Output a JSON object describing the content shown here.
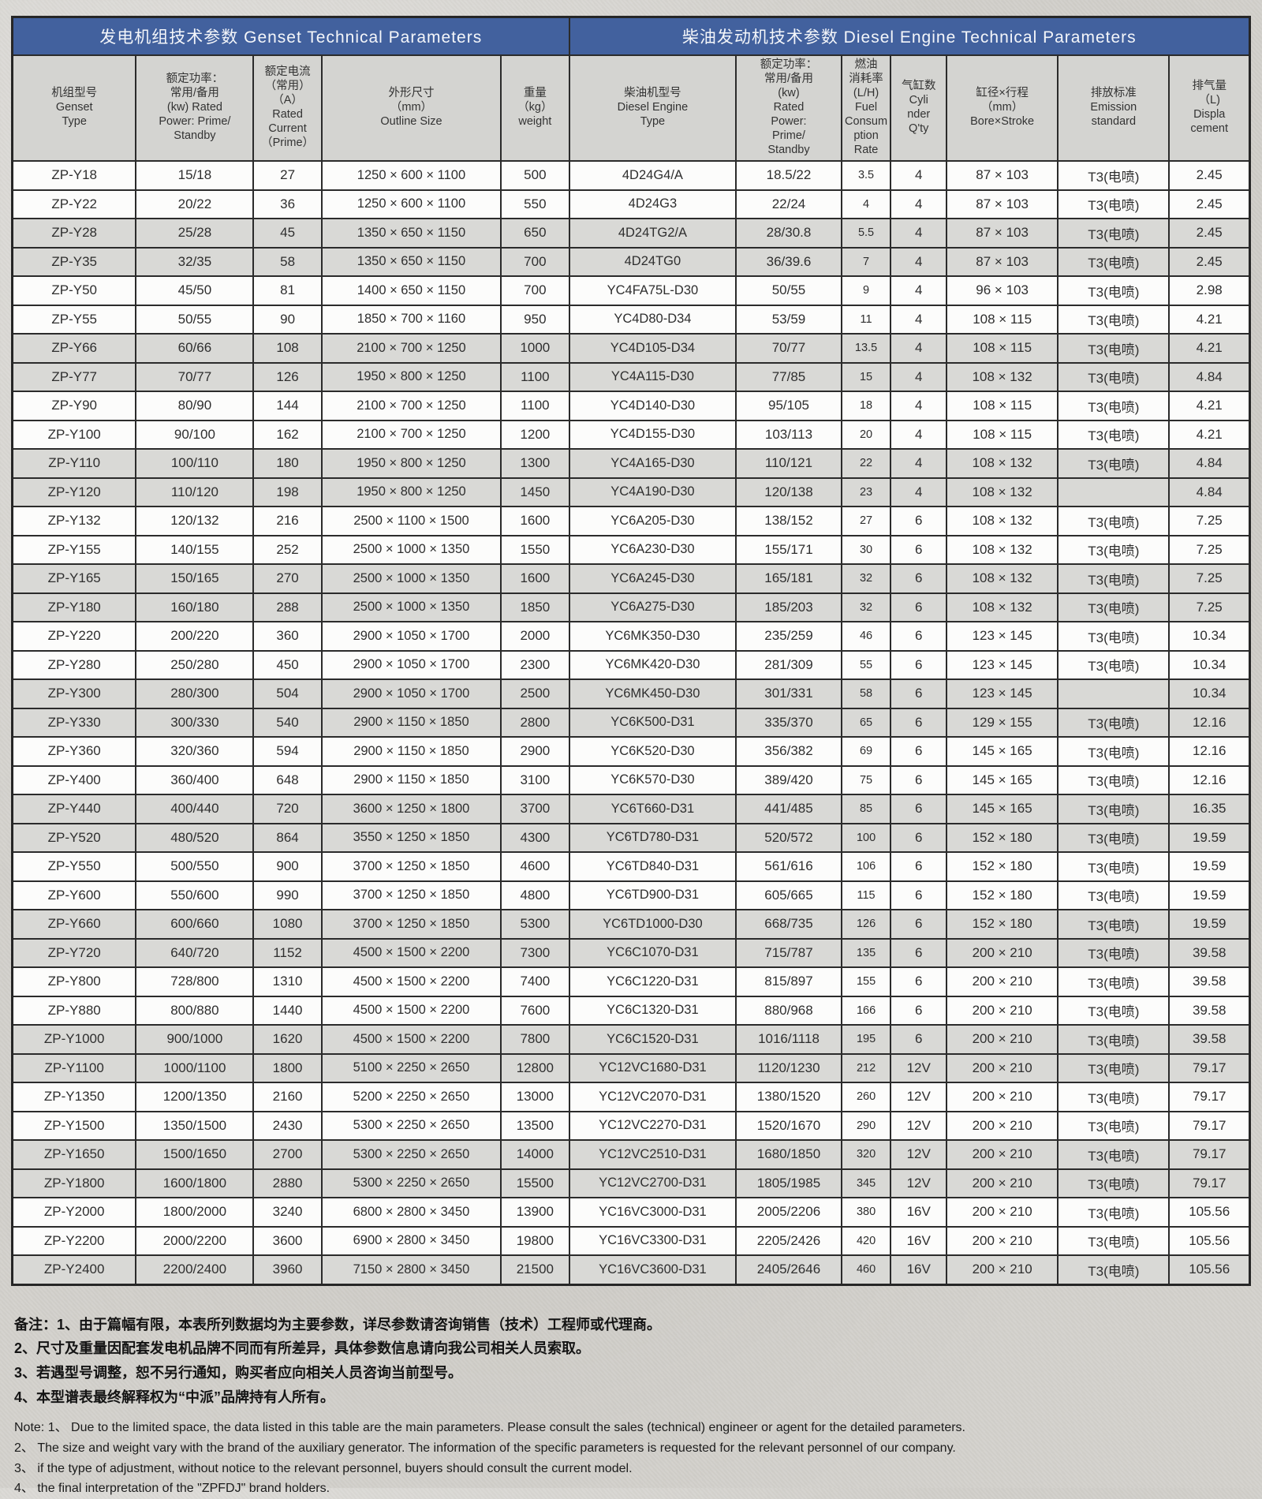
{
  "colors": {
    "header_blue": "#42619e",
    "stripe_gray": "#d9d9d6",
    "border": "#2b2b2b",
    "page_background": "#d3d1cc"
  },
  "table": {
    "group_headers": [
      "发电机组技术参数 Genset Technical Parameters",
      "柴油发动机技术参数 Diesel Engine Technical Parameters"
    ],
    "group_spans": [
      5,
      7
    ],
    "columns": [
      "机组型号\nGenset\nType",
      "额定功率：\n常用/备用\n(kw) Rated\nPower: Prime/\nStandby",
      "额定电流\n（常用）\n（A）\nRated\nCurrent\n（Prime）",
      "外形尺寸\n（mm）\nOutline Size",
      "重量\n（kg）\nweight",
      "柴油机型号\nDiesel Engine\nType",
      "额定功率：\n常用/备用\n(kw)\nRated\nPower:\nPrime/\nStandby",
      "燃油\n消耗率\n(L/H)\nFuel\nConsum\nption\nRate",
      "气缸数\nCyli\nnder\nQ'ty",
      "缸径×行程\n（mm）\nBore×Stroke",
      "排放标准\nEmission\nstandard",
      "排气量\n（L)\nDispla\ncement"
    ],
    "rows": [
      [
        "ZP-Y18",
        "15/18",
        "27",
        "1250 × 600 × 1100",
        "500",
        "4D24G4/A",
        "18.5/22",
        "3.5",
        "4",
        "87 × 103",
        "T3(电喷)",
        "2.45"
      ],
      [
        "ZP-Y22",
        "20/22",
        "36",
        "1250 × 600 × 1100",
        "550",
        "4D24G3",
        "22/24",
        "4",
        "4",
        "87 × 103",
        "T3(电喷)",
        "2.45"
      ],
      [
        "ZP-Y28",
        "25/28",
        "45",
        "1350 × 650 × 1150",
        "650",
        "4D24TG2/A",
        "28/30.8",
        "5.5",
        "4",
        "87 × 103",
        "T3(电喷)",
        "2.45"
      ],
      [
        "ZP-Y35",
        "32/35",
        "58",
        "1350 × 650 × 1150",
        "700",
        "4D24TG0",
        "36/39.6",
        "7",
        "4",
        "87 × 103",
        "T3(电喷)",
        "2.45"
      ],
      [
        "ZP-Y50",
        "45/50",
        "81",
        "1400 × 650 × 1150",
        "700",
        "YC4FA75L-D30",
        "50/55",
        "9",
        "4",
        "96 × 103",
        "T3(电喷)",
        "2.98"
      ],
      [
        "ZP-Y55",
        "50/55",
        "90",
        "1850 × 700 × 1160",
        "950",
        "YC4D80-D34",
        "53/59",
        "11",
        "4",
        "108 × 115",
        "T3(电喷)",
        "4.21"
      ],
      [
        "ZP-Y66",
        "60/66",
        "108",
        "2100 × 700 × 1250",
        "1000",
        "YC4D105-D34",
        "70/77",
        "13.5",
        "4",
        "108 × 115",
        "T3(电喷)",
        "4.21"
      ],
      [
        "ZP-Y77",
        "70/77",
        "126",
        "1950 × 800 × 1250",
        "1100",
        "YC4A115-D30",
        "77/85",
        "15",
        "4",
        "108 × 132",
        "T3(电喷)",
        "4.84"
      ],
      [
        "ZP-Y90",
        "80/90",
        "144",
        "2100 × 700 × 1250",
        "1100",
        "YC4D140-D30",
        "95/105",
        "18",
        "4",
        "108 × 115",
        "T3(电喷)",
        "4.21"
      ],
      [
        "ZP-Y100",
        "90/100",
        "162",
        "2100 × 700 × 1250",
        "1200",
        "YC4D155-D30",
        "103/113",
        "20",
        "4",
        "108 × 115",
        "T3(电喷)",
        "4.21"
      ],
      [
        "ZP-Y110",
        "100/110",
        "180",
        "1950 × 800 × 1250",
        "1300",
        "YC4A165-D30",
        "110/121",
        "22",
        "4",
        "108 × 132",
        "T3(电喷)",
        "4.84"
      ],
      [
        "ZP-Y120",
        "110/120",
        "198",
        "1950 × 800 × 1250",
        "1450",
        "YC4A190-D30",
        "120/138",
        "23",
        "4",
        "108 × 132",
        "",
        "4.84"
      ],
      [
        "ZP-Y132",
        "120/132",
        "216",
        "2500 × 1100 × 1500",
        "1600",
        "YC6A205-D30",
        "138/152",
        "27",
        "6",
        "108 × 132",
        "T3(电喷)",
        "7.25"
      ],
      [
        "ZP-Y155",
        "140/155",
        "252",
        "2500 × 1000 × 1350",
        "1550",
        "YC6A230-D30",
        "155/171",
        "30",
        "6",
        "108 × 132",
        "T3(电喷)",
        "7.25"
      ],
      [
        "ZP-Y165",
        "150/165",
        "270",
        "2500 × 1000 × 1350",
        "1600",
        "YC6A245-D30",
        "165/181",
        "32",
        "6",
        "108 × 132",
        "T3(电喷)",
        "7.25"
      ],
      [
        "ZP-Y180",
        "160/180",
        "288",
        "2500 × 1000 × 1350",
        "1850",
        "YC6A275-D30",
        "185/203",
        "32",
        "6",
        "108 × 132",
        "T3(电喷)",
        "7.25"
      ],
      [
        "ZP-Y220",
        "200/220",
        "360",
        "2900 × 1050 × 1700",
        "2000",
        "YC6MK350-D30",
        "235/259",
        "46",
        "6",
        "123 × 145",
        "T3(电喷)",
        "10.34"
      ],
      [
        "ZP-Y280",
        "250/280",
        "450",
        "2900 × 1050 × 1700",
        "2300",
        "YC6MK420-D30",
        "281/309",
        "55",
        "6",
        "123 × 145",
        "T3(电喷)",
        "10.34"
      ],
      [
        "ZP-Y300",
        "280/300",
        "504",
        "2900 × 1050 × 1700",
        "2500",
        "YC6MK450-D30",
        "301/331",
        "58",
        "6",
        "123 × 145",
        "",
        "10.34"
      ],
      [
        "ZP-Y330",
        "300/330",
        "540",
        "2900 × 1150 × 1850",
        "2800",
        "YC6K500-D31",
        "335/370",
        "65",
        "6",
        "129 × 155",
        "T3(电喷)",
        "12.16"
      ],
      [
        "ZP-Y360",
        "320/360",
        "594",
        "2900 × 1150 × 1850",
        "2900",
        "YC6K520-D30",
        "356/382",
        "69",
        "6",
        "145 × 165",
        "T3(电喷)",
        "12.16"
      ],
      [
        "ZP-Y400",
        "360/400",
        "648",
        "2900 × 1150 × 1850",
        "3100",
        "YC6K570-D30",
        "389/420",
        "75",
        "6",
        "145 × 165",
        "T3(电喷)",
        "12.16"
      ],
      [
        "ZP-Y440",
        "400/440",
        "720",
        "3600 × 1250 × 1800",
        "3700",
        "YC6T660-D31",
        "441/485",
        "85",
        "6",
        "145 × 165",
        "T3(电喷)",
        "16.35"
      ],
      [
        "ZP-Y520",
        "480/520",
        "864",
        "3550 × 1250 × 1850",
        "4300",
        "YC6TD780-D31",
        "520/572",
        "100",
        "6",
        "152 × 180",
        "T3(电喷)",
        "19.59"
      ],
      [
        "ZP-Y550",
        "500/550",
        "900",
        "3700 × 1250 × 1850",
        "4600",
        "YC6TD840-D31",
        "561/616",
        "106",
        "6",
        "152 × 180",
        "T3(电喷)",
        "19.59"
      ],
      [
        "ZP-Y600",
        "550/600",
        "990",
        "3700 × 1250 × 1850",
        "4800",
        "YC6TD900-D31",
        "605/665",
        "115",
        "6",
        "152 × 180",
        "T3(电喷)",
        "19.59"
      ],
      [
        "ZP-Y660",
        "600/660",
        "1080",
        "3700 × 1250 × 1850",
        "5300",
        "YC6TD1000-D30",
        "668/735",
        "126",
        "6",
        "152 × 180",
        "T3(电喷)",
        "19.59"
      ],
      [
        "ZP-Y720",
        "640/720",
        "1152",
        "4500 × 1500 × 2200",
        "7300",
        "YC6C1070-D31",
        "715/787",
        "135",
        "6",
        "200 × 210",
        "T3(电喷)",
        "39.58"
      ],
      [
        "ZP-Y800",
        "728/800",
        "1310",
        "4500 × 1500 × 2200",
        "7400",
        "YC6C1220-D31",
        "815/897",
        "155",
        "6",
        "200 × 210",
        "T3(电喷)",
        "39.58"
      ],
      [
        "ZP-Y880",
        "800/880",
        "1440",
        "4500 × 1500 × 2200",
        "7600",
        "YC6C1320-D31",
        "880/968",
        "166",
        "6",
        "200 × 210",
        "T3(电喷)",
        "39.58"
      ],
      [
        "ZP-Y1000",
        "900/1000",
        "1620",
        "4500 × 1500 × 2200",
        "7800",
        "YC6C1520-D31",
        "1016/1118",
        "195",
        "6",
        "200 × 210",
        "T3(电喷)",
        "39.58"
      ],
      [
        "ZP-Y1100",
        "1000/1100",
        "1800",
        "5100 × 2250 × 2650",
        "12800",
        "YC12VC1680-D31",
        "1120/1230",
        "212",
        "12V",
        "200 × 210",
        "T3(电喷)",
        "79.17"
      ],
      [
        "ZP-Y1350",
        "1200/1350",
        "2160",
        "5200 × 2250 × 2650",
        "13000",
        "YC12VC2070-D31",
        "1380/1520",
        "260",
        "12V",
        "200 × 210",
        "T3(电喷)",
        "79.17"
      ],
      [
        "ZP-Y1500",
        "1350/1500",
        "2430",
        "5300 × 2250 × 2650",
        "13500",
        "YC12VC2270-D31",
        "1520/1670",
        "290",
        "12V",
        "200 × 210",
        "T3(电喷)",
        "79.17"
      ],
      [
        "ZP-Y1650",
        "1500/1650",
        "2700",
        "5300 × 2250 × 2650",
        "14000",
        "YC12VC2510-D31",
        "1680/1850",
        "320",
        "12V",
        "200 × 210",
        "T3(电喷)",
        "79.17"
      ],
      [
        "ZP-Y1800",
        "1600/1800",
        "2880",
        "5300 × 2250 × 2650",
        "15500",
        "YC12VC2700-D31",
        "1805/1985",
        "345",
        "12V",
        "200 × 210",
        "T3(电喷)",
        "79.17"
      ],
      [
        "ZP-Y2000",
        "1800/2000",
        "3240",
        "6800 × 2800 × 3450",
        "13900",
        "YC16VC3000-D31",
        "2005/2206",
        "380",
        "16V",
        "200 × 210",
        "T3(电喷)",
        "105.56"
      ],
      [
        "ZP-Y2200",
        "2000/2200",
        "3600",
        "6900 × 2800 × 3450",
        "19800",
        "YC16VC3300-D31",
        "2205/2426",
        "420",
        "16V",
        "200 × 210",
        "T3(电喷)",
        "105.56"
      ],
      [
        "ZP-Y2400",
        "2200/2400",
        "3960",
        "7150 × 2800 × 3450",
        "21500",
        "YC16VC3600-D31",
        "2405/2646",
        "460",
        "16V",
        "200 × 210",
        "T3(电喷)",
        "105.56"
      ]
    ]
  },
  "notes_zh": [
    "备注：1、由于篇幅有限，本表所列数据均为主要参数，详尽参数请咨询销售（技术）工程师或代理商。",
    "2、尺寸及重量因配套发电机品牌不同而有所差异，具体参数信息请向我公司相关人员索取。",
    "3、若遇型号调整，恕不另行通知，购买者应向相关人员咨询当前型号。",
    "4、本型谱表最终解释权为“中派”品牌持有人所有。"
  ],
  "notes_en": [
    "Note: 1、 Due to the limited space, the data listed in this table are the main parameters. Please consult the sales (technical) engineer or agent for the detailed parameters.",
    "2、 The size and weight vary with the brand of the auxiliary generator. The information of the specific parameters is requested for the relevant personnel of our company.",
    "3、 if the type of adjustment, without notice to the relevant personnel, buyers should consult the current model.",
    "4、 the final interpretation of the \"ZPFDJ\" brand holders."
  ]
}
